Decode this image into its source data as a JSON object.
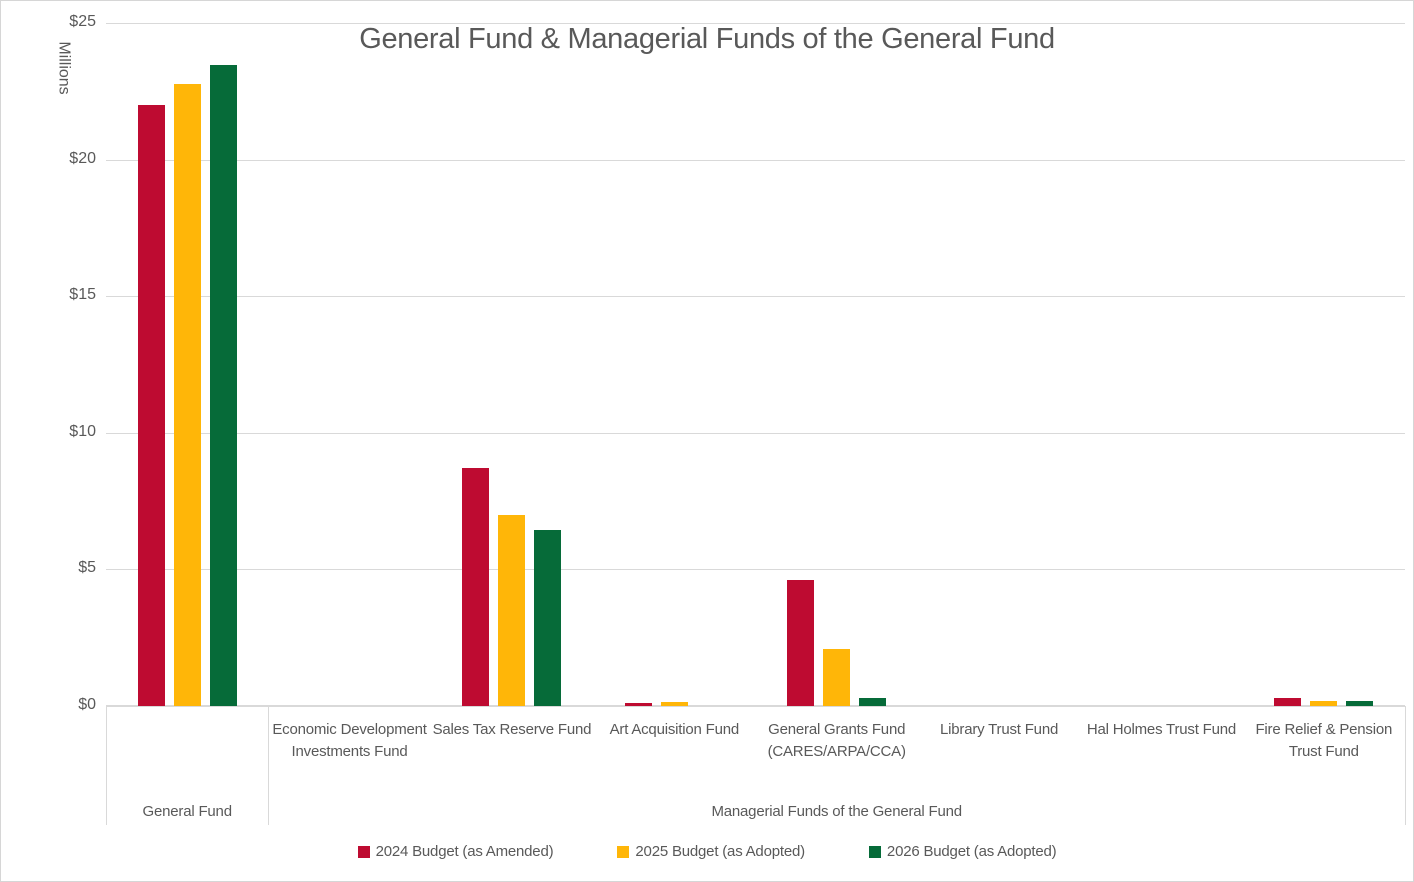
{
  "chart_data": {
    "type": "bar",
    "title": "General Fund & Managerial Funds of the General Fund",
    "unit_label": "Millions",
    "ylabel": "Millions",
    "xlabel": "",
    "ylim": [
      0,
      25
    ],
    "ytick_step": 5,
    "yticks": [
      {
        "value": 0,
        "label": "$0"
      },
      {
        "value": 5,
        "label": "$5"
      },
      {
        "value": 10,
        "label": "$10"
      },
      {
        "value": 15,
        "label": "$15"
      },
      {
        "value": 20,
        "label": "$20"
      },
      {
        "value": 25,
        "label": "$25"
      }
    ],
    "grid": true,
    "legend_position": "bottom",
    "categories": [
      "General Fund",
      "Economic Development Investments Fund",
      "Sales Tax Reserve Fund",
      "Art Acquisition Fund",
      "General Grants Fund (CARES/ARPA/CCA)",
      "Library Trust Fund",
      "Hal Holmes Trust Fund",
      "Fire Relief & Pension Trust Fund"
    ],
    "category_groups": [
      {
        "label": "General Fund",
        "start": 0,
        "span": 1
      },
      {
        "label": "Managerial Funds of the General Fund",
        "start": 1,
        "span": 7
      }
    ],
    "series": [
      {
        "name": "2024 Budget (as Amended)",
        "color": "#BE0B31",
        "values": [
          22.0,
          0,
          8.7,
          0.1,
          4.6,
          0,
          0,
          0.3
        ]
      },
      {
        "name": "2025 Budget (as Adopted)",
        "color": "#FFB608",
        "values": [
          22.75,
          0,
          7.0,
          0.15,
          2.1,
          0,
          0,
          0.2
        ]
      },
      {
        "name": "2026 Budget (as Adopted)",
        "color": "#066B39",
        "values": [
          23.45,
          0,
          6.45,
          0,
          0.3,
          0,
          0,
          0.2
        ]
      }
    ]
  },
  "colors": {
    "text": "#595959",
    "gridline": "#d9d9d9",
    "axis_line": "#d9d9d9",
    "border": "#d6d6d6",
    "background": "#ffffff"
  }
}
